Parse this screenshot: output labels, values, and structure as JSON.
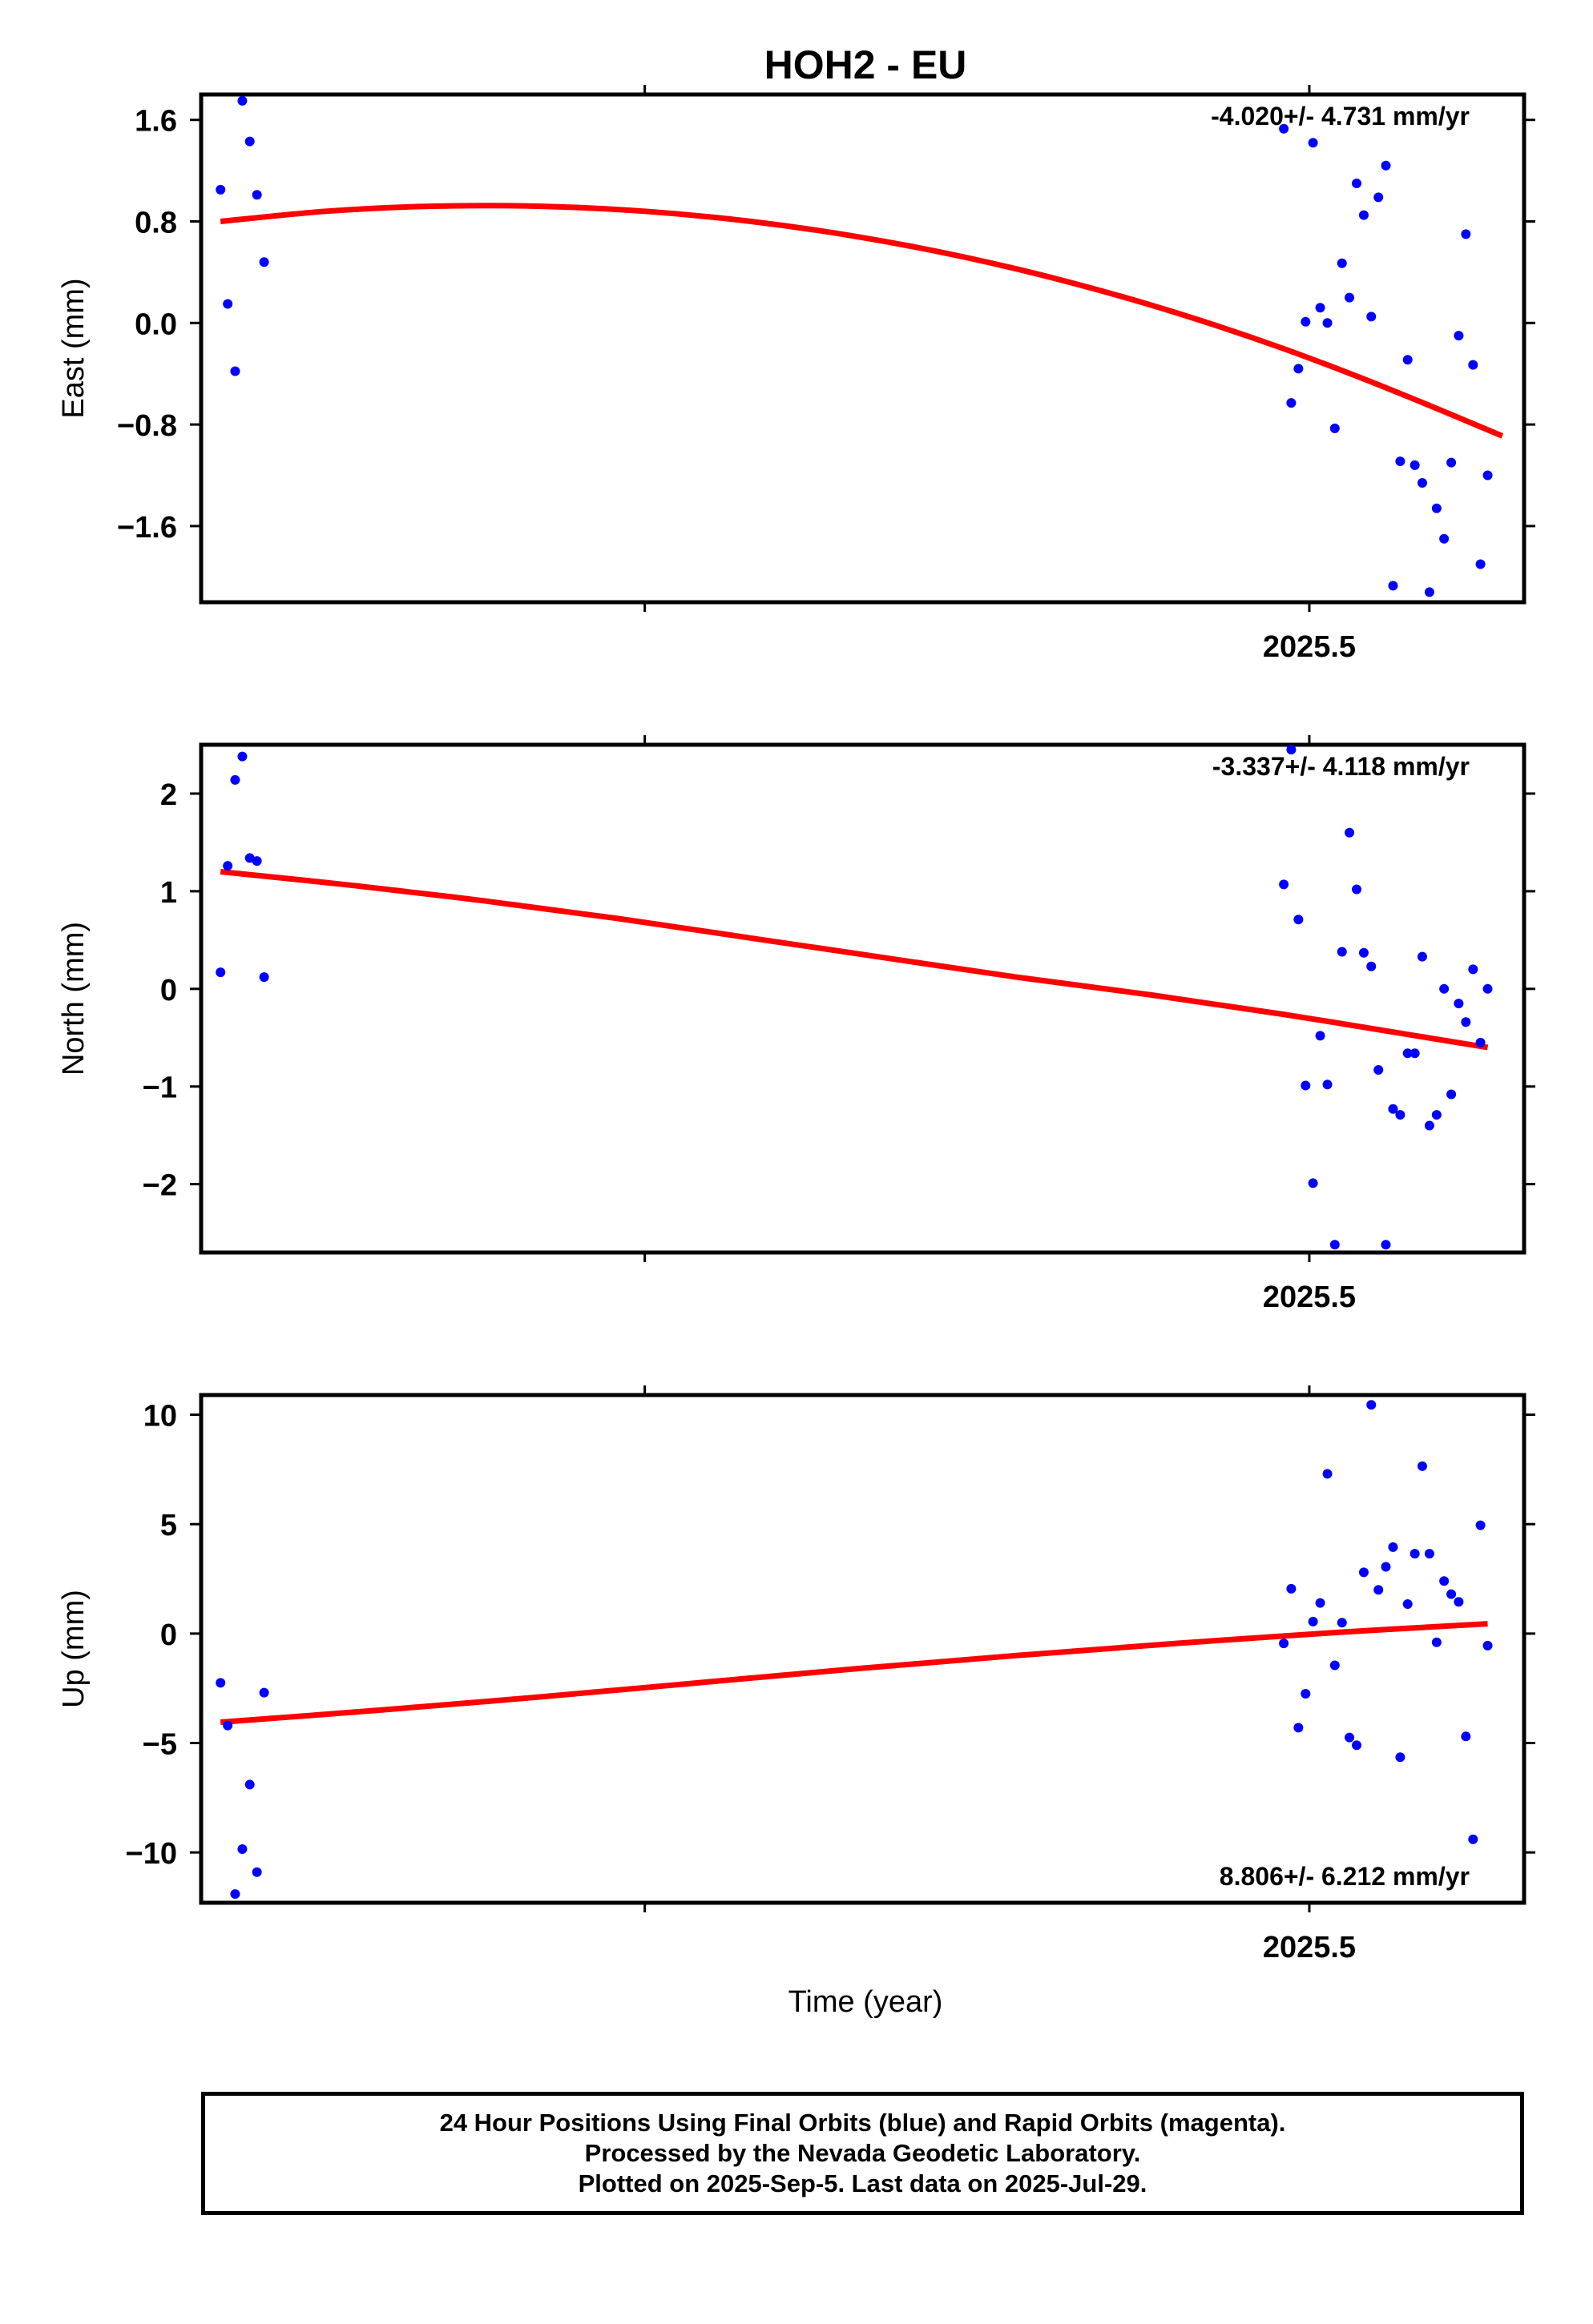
{
  "chart_data": {
    "title": "HOH2 - EU",
    "type": "scatter",
    "xlabel": "Time (year)",
    "colors": {
      "data": "#0000ff",
      "fit": "#ff0000",
      "axes": "#000000"
    },
    "panels": [
      {
        "name": "east",
        "ylabel": "East (mm)",
        "ylim": [
          -2.2,
          1.8
        ],
        "yticks": [
          1.6,
          0.8,
          0.0,
          -0.8,
          -1.6
        ],
        "ytick_labels": [
          "1.6",
          "0.8",
          "0.0",
          "−0.8",
          "−1.6"
        ],
        "rate_label": "-4.020+/- 4.731 mm/yr",
        "rate_position": "top-right",
        "x_tick_label": "2025.5",
        "x": [
          2025.0904,
          2025.0931,
          2025.0959,
          2025.0986,
          2025.1014,
          2025.1041,
          2025.1068,
          2025.4904,
          2025.4932,
          2025.4959,
          2025.4986,
          2025.5014,
          2025.5041,
          2025.5068,
          2025.5096,
          2025.5123,
          2025.5151,
          2025.5178,
          2025.5205,
          2025.5233,
          2025.526,
          2025.5288,
          2025.5315,
          2025.5342,
          2025.537,
          2025.5397,
          2025.5425,
          2025.5452,
          2025.5479,
          2025.5507,
          2025.5534,
          2025.5562,
          2025.5589,
          2025.5616,
          2025.5644,
          2025.5671,
          2025.5699,
          2025.5726
        ],
        "y": [
          1.05,
          0.15,
          -0.38,
          1.75,
          1.43,
          1.01,
          0.48,
          1.53,
          -0.63,
          -0.36,
          0.01,
          1.42,
          0.12,
          0.0,
          -0.83,
          0.47,
          0.2,
          1.1,
          0.85,
          0.05,
          0.99,
          1.24,
          -2.07,
          -1.09,
          -0.29,
          -1.12,
          -1.26,
          -2.12,
          -1.46,
          -1.7,
          -1.1,
          -0.1,
          0.7,
          -0.33,
          -1.9,
          -1.2,
          null,
          null
        ],
        "fit_x": [
          2025.0904,
          2025.13,
          2025.17,
          2025.21,
          2025.25,
          2025.29,
          2025.33,
          2025.37,
          2025.41,
          2025.45,
          2025.49,
          2025.53,
          2025.5726
        ],
        "fit_y": [
          0.8,
          0.88,
          0.92,
          0.92,
          0.88,
          0.8,
          0.68,
          0.52,
          0.32,
          0.08,
          -0.2,
          -0.52,
          -0.89
        ]
      },
      {
        "name": "north",
        "ylabel": "North (mm)",
        "ylim": [
          -2.7,
          2.5
        ],
        "yticks": [
          2,
          1,
          0,
          -1,
          -2
        ],
        "ytick_labels": [
          "2",
          "1",
          "0",
          "−1",
          "−2"
        ],
        "rate_label": "-3.337+/- 4.118 mm/yr",
        "rate_position": "top-right",
        "x_tick_label": "2025.5",
        "x": [
          2025.0904,
          2025.0931,
          2025.0959,
          2025.0986,
          2025.1014,
          2025.1041,
          2025.1068,
          2025.4904,
          2025.4932,
          2025.4959,
          2025.4986,
          2025.5014,
          2025.5041,
          2025.5068,
          2025.5096,
          2025.5123,
          2025.5151,
          2025.5178,
          2025.5205,
          2025.5233,
          2025.526,
          2025.5288,
          2025.5315,
          2025.5342,
          2025.537,
          2025.5397,
          2025.5425,
          2025.5452,
          2025.5479,
          2025.5507,
          2025.5534,
          2025.5562,
          2025.5589,
          2025.5616,
          2025.5644,
          2025.5671
        ],
        "y": [
          0.17,
          1.26,
          2.14,
          2.38,
          1.34,
          1.31,
          0.12,
          1.07,
          2.45,
          0.71,
          -0.99,
          -1.99,
          -0.48,
          -0.98,
          -2.62,
          0.38,
          1.6,
          1.02,
          0.37,
          0.23,
          -0.83,
          -2.62,
          -1.23,
          -1.29,
          -0.66,
          -0.66,
          0.33,
          -1.4,
          -1.29,
          0.0,
          -1.08,
          -0.15,
          -0.34,
          0.2,
          -0.55,
          0.0
        ],
        "fit_x": [
          2025.0904,
          2025.14,
          2025.19,
          2025.24,
          2025.29,
          2025.34,
          2025.39,
          2025.44,
          2025.49,
          2025.54,
          2025.5671
        ],
        "fit_y": [
          1.2,
          1.06,
          0.9,
          0.72,
          0.52,
          0.32,
          0.12,
          -0.06,
          -0.26,
          -0.48,
          -0.6
        ]
      },
      {
        "name": "up",
        "ylabel": "Up (mm)",
        "ylim": [
          -12.3,
          10.9
        ],
        "yticks": [
          10,
          5,
          0,
          -5,
          -10
        ],
        "ytick_labels": [
          "10",
          "5",
          "0",
          "−5",
          "−10"
        ],
        "rate_label": "8.806+/- 6.212 mm/yr",
        "rate_position": "bottom-right",
        "x_tick_label": "2025.5",
        "x": [
          2025.0904,
          2025.0931,
          2025.0959,
          2025.0986,
          2025.1014,
          2025.1041,
          2025.1068,
          2025.1096,
          2025.4904,
          2025.4932,
          2025.4959,
          2025.4986,
          2025.5014,
          2025.5041,
          2025.5068,
          2025.5096,
          2025.5123,
          2025.5151,
          2025.5178,
          2025.5205,
          2025.5233,
          2025.526,
          2025.5288,
          2025.5315,
          2025.5342,
          2025.537,
          2025.5397,
          2025.5425,
          2025.5452,
          2025.5479,
          2025.5507,
          2025.5534,
          2025.5562,
          2025.5589,
          2025.5616,
          2025.5644,
          2025.5671
        ],
        "y": [
          -2.25,
          -4.2,
          -11.9,
          -9.85,
          -6.9,
          -10.9,
          -2.7,
          null,
          -0.45,
          2.05,
          -4.3,
          -2.75,
          0.55,
          1.4,
          7.3,
          -1.45,
          0.5,
          -4.75,
          -5.1,
          2.8,
          10.45,
          2.0,
          3.05,
          3.95,
          -5.65,
          1.35,
          3.65,
          7.65,
          3.65,
          -0.4,
          2.4,
          1.8,
          1.45,
          -4.7,
          -9.4,
          4.95,
          -0.55
        ],
        "fit_x": [
          2025.0904,
          2025.15,
          2025.21,
          2025.27,
          2025.33,
          2025.39,
          2025.45,
          2025.51,
          2025.5671
        ],
        "fit_y": [
          -4.05,
          -3.5,
          -2.9,
          -2.25,
          -1.6,
          -1.0,
          -0.45,
          0.05,
          0.45
        ]
      }
    ]
  },
  "footer": {
    "line1": "24 Hour Positions Using Final Orbits (blue) and Rapid Orbits (magenta).",
    "line2": "Processed by the Nevada Geodetic Laboratory.",
    "line3": "Plotted on 2025-Sep-5. Last data on 2025-Jul-29."
  }
}
